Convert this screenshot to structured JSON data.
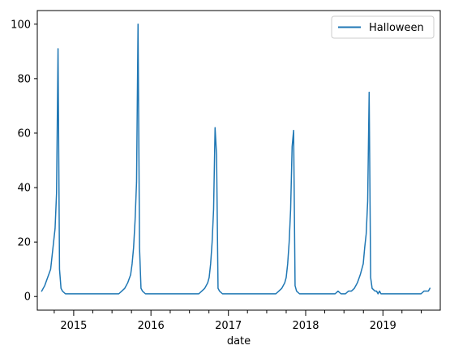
{
  "chart_data": {
    "type": "line",
    "xlabel": "date",
    "ylabel": "",
    "xlim": [
      "2014-07-13",
      "2019-09-29"
    ],
    "ylim": [
      -5,
      105
    ],
    "grid": false,
    "legend": {
      "placement": "top-right",
      "entries": [
        "Halloween"
      ]
    },
    "x_ticks": [
      "2015",
      "2016",
      "2017",
      "2018",
      "2019"
    ],
    "y_ticks": [
      0,
      20,
      40,
      60,
      80,
      100
    ],
    "series": [
      {
        "name": "Halloween",
        "color": "#1f77b4",
        "x": [
          "2014-08-03",
          "2014-08-17",
          "2014-08-31",
          "2014-09-14",
          "2014-09-28",
          "2014-10-05",
          "2014-10-12",
          "2014-10-19",
          "2014-10-26",
          "2014-11-02",
          "2014-11-09",
          "2014-11-23",
          "2015-01-04",
          "2015-03-01",
          "2015-06-28",
          "2015-08-02",
          "2015-08-16",
          "2015-08-30",
          "2015-09-13",
          "2015-09-27",
          "2015-10-04",
          "2015-10-11",
          "2015-10-18",
          "2015-10-25",
          "2015-11-01",
          "2015-11-08",
          "2015-11-15",
          "2015-11-22",
          "2015-12-06",
          "2016-02-28",
          "2016-07-31",
          "2016-08-14",
          "2016-08-28",
          "2016-09-11",
          "2016-09-25",
          "2016-10-02",
          "2016-10-09",
          "2016-10-16",
          "2016-10-23",
          "2016-10-30",
          "2016-11-06",
          "2016-11-13",
          "2016-11-20",
          "2016-12-04",
          "2017-02-26",
          "2017-07-30",
          "2017-08-13",
          "2017-08-27",
          "2017-09-10",
          "2017-09-24",
          "2017-10-01",
          "2017-10-08",
          "2017-10-15",
          "2017-10-22",
          "2017-10-29",
          "2017-11-05",
          "2017-11-12",
          "2017-11-19",
          "2017-12-03",
          "2018-03-11",
          "2018-05-20",
          "2018-06-03",
          "2018-06-17",
          "2018-07-08",
          "2018-07-22",
          "2018-08-05",
          "2018-08-19",
          "2018-09-02",
          "2018-09-16",
          "2018-09-30",
          "2018-10-07",
          "2018-10-14",
          "2018-10-21",
          "2018-10-28",
          "2018-11-04",
          "2018-11-11",
          "2018-11-25",
          "2018-12-02",
          "2018-12-09",
          "2018-12-16",
          "2018-12-23",
          "2019-01-13",
          "2019-04-14",
          "2019-06-30",
          "2019-07-14",
          "2019-07-28",
          "2019-08-04",
          "2019-08-11"
        ],
        "values": [
          2,
          4,
          7,
          10,
          20,
          25,
          38,
          91,
          10,
          3,
          2,
          1,
          1,
          1,
          1,
          1,
          2,
          3,
          5,
          8,
          12,
          18,
          28,
          42,
          100,
          18,
          3,
          2,
          1,
          1,
          1,
          1,
          2,
          3,
          5,
          7,
          12,
          20,
          32,
          62,
          52,
          3,
          2,
          1,
          1,
          1,
          1,
          2,
          3,
          5,
          7,
          12,
          20,
          32,
          55,
          61,
          4,
          2,
          1,
          1,
          1,
          2,
          1,
          1,
          2,
          2,
          3,
          5,
          8,
          12,
          18,
          23,
          35,
          75,
          7,
          3,
          2,
          2,
          1,
          2,
          1,
          1,
          1,
          1,
          2,
          2,
          2,
          3
        ]
      }
    ]
  }
}
